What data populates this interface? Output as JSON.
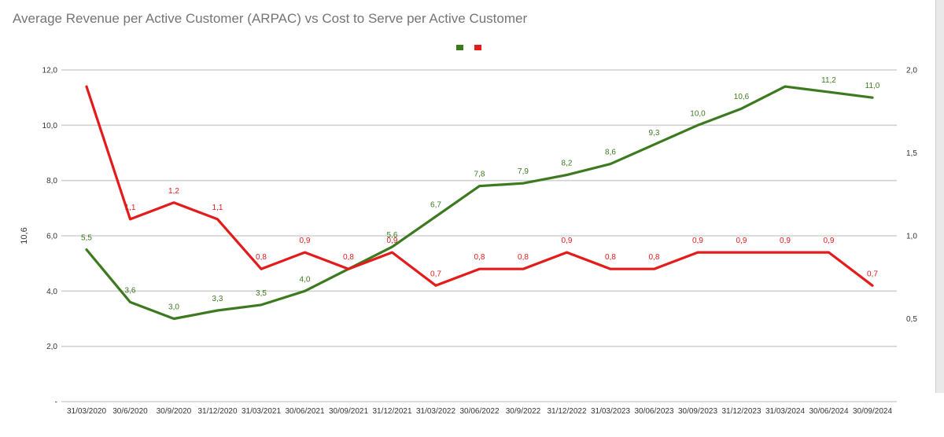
{
  "chart_data": {
    "type": "line",
    "title": "Average Revenue per Active Customer (ARPAC) vs Cost to Serve per Active Customer",
    "ylabel": "10,6",
    "categories": [
      "31/03/2020",
      "30/6/2020",
      "30/9/2020",
      "31/12/2020",
      "31/03/2021",
      "30/06/2021",
      "30/09/2021",
      "31/12/2021",
      "31/03/2022",
      "30/06/2022",
      "30/9/2022",
      "31/12/2022",
      "31/03/2023",
      "30/06/2023",
      "30/09/2023",
      "31/12/2023",
      "31/03/2024",
      "30/06/2024",
      "30/09/2024"
    ],
    "left_axis": {
      "ylim": [
        0,
        12
      ],
      "ticks": [
        0,
        2,
        4,
        6,
        8,
        10,
        12
      ],
      "tick_labels": [
        "-",
        "2,0",
        "4,0",
        "6,0",
        "8,0",
        "10,0",
        "12,0"
      ]
    },
    "right_axis": {
      "ylim": [
        0,
        2
      ],
      "ticks": [
        0.5,
        1.0,
        1.5,
        2.0
      ],
      "tick_labels": [
        "0,5",
        "1,0",
        "1,5",
        "2,0"
      ]
    },
    "grid": true,
    "legend_position": "top-center",
    "series": [
      {
        "color": "#3d7a1f",
        "axis": "left",
        "values": [
          5.5,
          3.6,
          3.0,
          3.3,
          3.5,
          4.0,
          4.8,
          5.6,
          6.7,
          7.8,
          7.9,
          8.2,
          8.6,
          9.3,
          10.0,
          10.6,
          11.4,
          11.2,
          11.0
        ],
        "labels": [
          "5,5",
          "3,6",
          "3,0",
          "3,3",
          "3,5",
          "4,0",
          "",
          "5,6",
          "6,7",
          "7,8",
          "7,9",
          "8,2",
          "8,6",
          "9,3",
          "10,0",
          "10,6",
          "",
          "11,2",
          "11,0"
        ]
      },
      {
        "color": "#e31b1b",
        "axis": "right",
        "values": [
          1.9,
          1.1,
          1.2,
          1.1,
          0.8,
          0.9,
          0.8,
          0.9,
          0.7,
          0.8,
          0.8,
          0.9,
          0.8,
          0.8,
          0.9,
          0.9,
          0.9,
          0.9,
          0.7
        ],
        "labels": [
          "",
          "1,1",
          "1,2",
          "1,1",
          "0,8",
          "0,9",
          "0,8",
          "0,9",
          "0,7",
          "0,8",
          "0,8",
          "0,9",
          "0,8",
          "0,8",
          "0,9",
          "0,9",
          "0,9",
          "0,9",
          "0,7"
        ]
      }
    ]
  }
}
